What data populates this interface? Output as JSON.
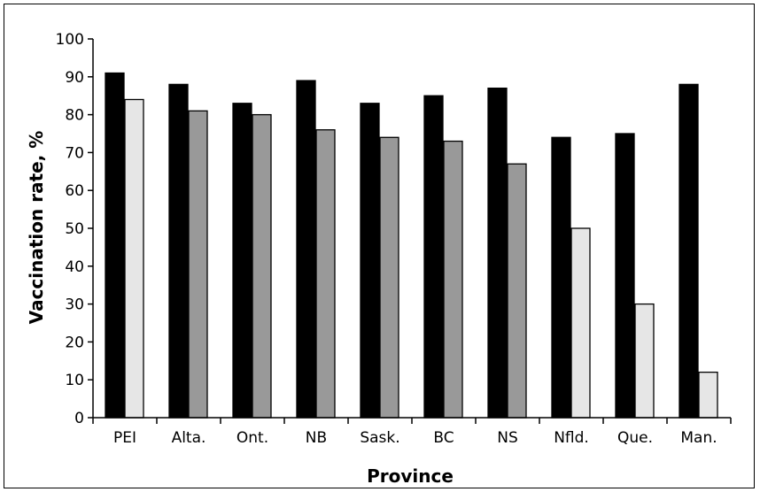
{
  "chart_data": {
    "type": "bar",
    "title": "",
    "xlabel": "Province",
    "ylabel": "Vaccination rate, %",
    "ylim": [
      0,
      100
    ],
    "yticks": [
      0,
      10,
      20,
      30,
      40,
      50,
      60,
      70,
      80,
      90,
      100
    ],
    "categories": [
      "PEI",
      "Alta.",
      "Ont.",
      "NB",
      "Sask.",
      "BC",
      "NS",
      "Nfld.",
      "Que.",
      "Man."
    ],
    "series": [
      {
        "values": [
          91,
          88,
          83,
          89,
          83,
          85,
          87,
          74,
          75,
          88
        ],
        "color": "#000000"
      },
      {
        "values": [
          84,
          81,
          80,
          76,
          74,
          73,
          67,
          50,
          30,
          12
        ],
        "colors": [
          "#e6e6e6",
          "#999999",
          "#999999",
          "#999999",
          "#999999",
          "#999999",
          "#999999",
          "#e6e6e6",
          "#e6e6e6",
          "#e6e6e6"
        ]
      }
    ],
    "grid": false,
    "legend": "none"
  }
}
